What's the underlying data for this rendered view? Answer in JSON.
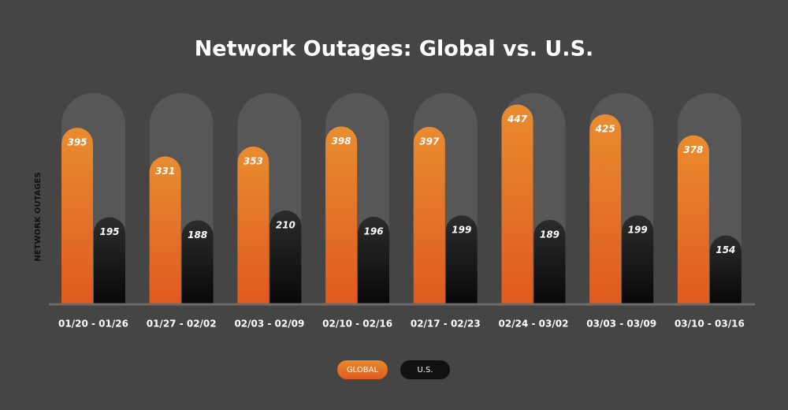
{
  "chart_data": {
    "type": "bar",
    "title": "Network Outages: Global vs. U.S.",
    "y_label": "NETWORK OUTAGES",
    "categories": [
      "01/20 - 01/26",
      "01/27 - 02/02",
      "02/03 - 02/09",
      "02/10 - 02/16",
      "02/17 - 02/23",
      "02/24 - 03/02",
      "03/03 - 03/09",
      "03/10 - 03/16"
    ],
    "series": [
      {
        "name": "GLOBAL",
        "color": "#e4742a",
        "values": [
          395,
          331,
          353,
          398,
          397,
          447,
          425,
          378
        ]
      },
      {
        "name": "U.S.",
        "color": "#151515",
        "values": [
          195,
          188,
          210,
          196,
          199,
          189,
          199,
          154
        ]
      }
    ],
    "legend": "bottom"
  }
}
